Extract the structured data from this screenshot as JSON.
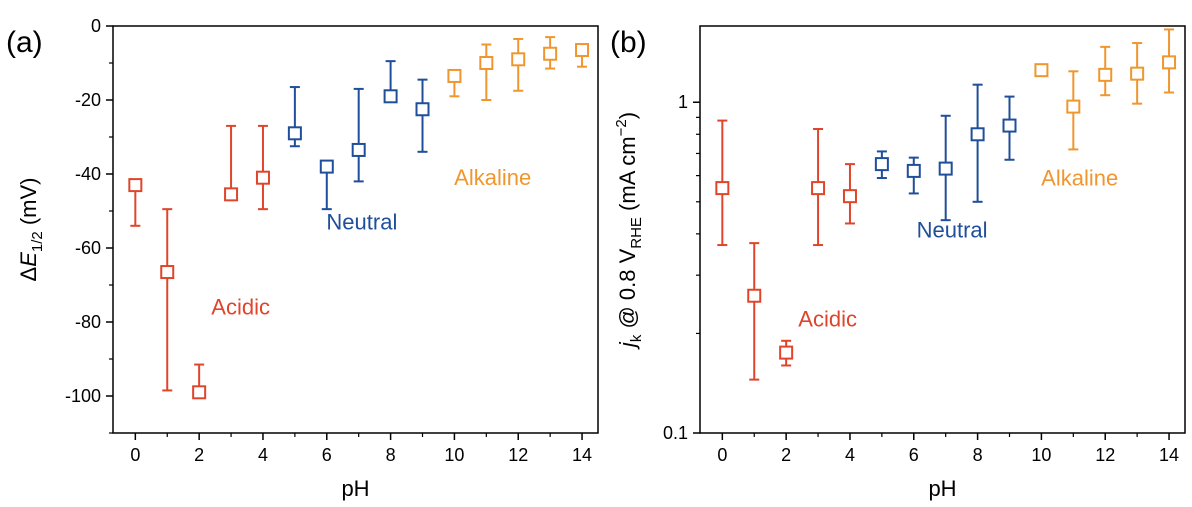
{
  "colors": {
    "acidic": "#e0452b",
    "neutral": "#1f4e9a",
    "alkaline": "#f0962e"
  },
  "chart_data": [
    {
      "panel": "(a)",
      "type": "scatter",
      "xlabel": "pH",
      "ylabel_prefix": "Δ",
      "ylabel_var": "E",
      "ylabel_sub": "1/2",
      "ylabel_suffix": " (mV)",
      "xlim": [
        -0.7,
        14.5
      ],
      "ylim": [
        -110,
        0
      ],
      "xticks": [
        0,
        2,
        4,
        6,
        8,
        10,
        12,
        14
      ],
      "xtick_labels": [
        "0",
        "2",
        "4",
        "6",
        "8",
        "10",
        "12",
        "14"
      ],
      "yticks": [
        0,
        -20,
        -40,
        -60,
        -80,
        -100
      ],
      "ytick_labels": [
        "0",
        "-20",
        "-40",
        "-60",
        "-80",
        "-100"
      ],
      "grid": false,
      "group_labels": [
        {
          "text": "Acidic",
          "group": "acidic",
          "x": 3.3,
          "y": -78
        },
        {
          "text": "Neutral",
          "group": "neutral",
          "x": 7.1,
          "y": -55
        },
        {
          "text": "Alkaline",
          "group": "alkaline",
          "x": 11.2,
          "y": -43
        }
      ],
      "points": [
        {
          "x": 0,
          "y": -43,
          "lo": -54,
          "hi": -43,
          "group": "acidic"
        },
        {
          "x": 1,
          "y": -66.5,
          "lo": -98.5,
          "hi": -49.5,
          "group": "acidic"
        },
        {
          "x": 2,
          "y": -99,
          "lo": -99,
          "hi": -91.5,
          "group": "acidic"
        },
        {
          "x": 3,
          "y": -45.5,
          "lo": -45.5,
          "hi": -27,
          "group": "acidic"
        },
        {
          "x": 4,
          "y": -41,
          "lo": -49.5,
          "hi": -27,
          "group": "acidic"
        },
        {
          "x": 5,
          "y": -29,
          "lo": -32.5,
          "hi": -16.5,
          "group": "neutral"
        },
        {
          "x": 6,
          "y": -38,
          "lo": -49.5,
          "hi": -38,
          "group": "neutral"
        },
        {
          "x": 7,
          "y": -33.5,
          "lo": -42,
          "hi": -17,
          "group": "neutral"
        },
        {
          "x": 8,
          "y": -19,
          "lo": -19,
          "hi": -9.5,
          "group": "neutral"
        },
        {
          "x": 9,
          "y": -22.5,
          "lo": -34,
          "hi": -14.5,
          "group": "neutral"
        },
        {
          "x": 10,
          "y": -13.5,
          "lo": -19,
          "hi": -13.5,
          "group": "alkaline"
        },
        {
          "x": 11,
          "y": -10,
          "lo": -20,
          "hi": -5,
          "group": "alkaline"
        },
        {
          "x": 12,
          "y": -9,
          "lo": -17.5,
          "hi": -3.5,
          "group": "alkaline"
        },
        {
          "x": 13,
          "y": -7.5,
          "lo": -11.5,
          "hi": -3,
          "group": "alkaline"
        },
        {
          "x": 14,
          "y": -6.5,
          "lo": -11,
          "hi": -6.5,
          "group": "alkaline"
        }
      ]
    },
    {
      "panel": "(b)",
      "type": "scatter",
      "xlabel": "pH",
      "ylabel_var": "j",
      "ylabel_sub1": "k",
      "ylabel_mid": " @ 0.8 V",
      "ylabel_sub2": "RHE",
      "ylabel_suffix": " (mA cm",
      "ylabel_sup": "−2",
      "ylabel_end": ")",
      "yscale": "log",
      "xlim": [
        -0.7,
        14.5
      ],
      "ylim": [
        0.1,
        1.7
      ],
      "xticks": [
        0,
        2,
        4,
        6,
        8,
        10,
        12,
        14
      ],
      "xtick_labels": [
        "0",
        "2",
        "4",
        "6",
        "8",
        "10",
        "12",
        "14"
      ],
      "yticks": [
        0.1,
        1
      ],
      "ytick_labels": [
        "0.1",
        "1"
      ],
      "grid": false,
      "group_labels": [
        {
          "text": "Acidic",
          "group": "acidic",
          "x": 3.3,
          "y": 0.21
        },
        {
          "text": "Neutral",
          "group": "neutral",
          "x": 7.2,
          "y": 0.39
        },
        {
          "text": "Alkaline",
          "group": "alkaline",
          "x": 11.2,
          "y": 0.56
        }
      ],
      "points": [
        {
          "x": 0,
          "y": 0.55,
          "lo": 0.37,
          "hi": 0.88,
          "group": "acidic"
        },
        {
          "x": 1,
          "y": 0.26,
          "lo": 0.145,
          "hi": 0.375,
          "group": "acidic"
        },
        {
          "x": 2,
          "y": 0.175,
          "lo": 0.16,
          "hi": 0.19,
          "group": "acidic"
        },
        {
          "x": 3,
          "y": 0.55,
          "lo": 0.37,
          "hi": 0.83,
          "group": "acidic"
        },
        {
          "x": 4,
          "y": 0.52,
          "lo": 0.43,
          "hi": 0.65,
          "group": "acidic"
        },
        {
          "x": 5,
          "y": 0.65,
          "lo": 0.59,
          "hi": 0.71,
          "group": "neutral"
        },
        {
          "x": 6,
          "y": 0.62,
          "lo": 0.53,
          "hi": 0.68,
          "group": "neutral"
        },
        {
          "x": 7,
          "y": 0.63,
          "lo": 0.44,
          "hi": 0.91,
          "group": "neutral"
        },
        {
          "x": 8,
          "y": 0.8,
          "lo": 0.5,
          "hi": 1.13,
          "group": "neutral"
        },
        {
          "x": 9,
          "y": 0.85,
          "lo": 0.67,
          "hi": 1.04,
          "group": "neutral"
        },
        {
          "x": 10,
          "y": 1.25,
          "lo": 1.22,
          "hi": 1.28,
          "group": "alkaline"
        },
        {
          "x": 11,
          "y": 0.97,
          "lo": 0.72,
          "hi": 1.24,
          "group": "alkaline"
        },
        {
          "x": 12,
          "y": 1.21,
          "lo": 1.05,
          "hi": 1.47,
          "group": "alkaline"
        },
        {
          "x": 13,
          "y": 1.22,
          "lo": 0.99,
          "hi": 1.51,
          "group": "alkaline"
        },
        {
          "x": 14,
          "y": 1.32,
          "lo": 1.07,
          "hi": 1.66,
          "group": "alkaline"
        }
      ]
    }
  ]
}
